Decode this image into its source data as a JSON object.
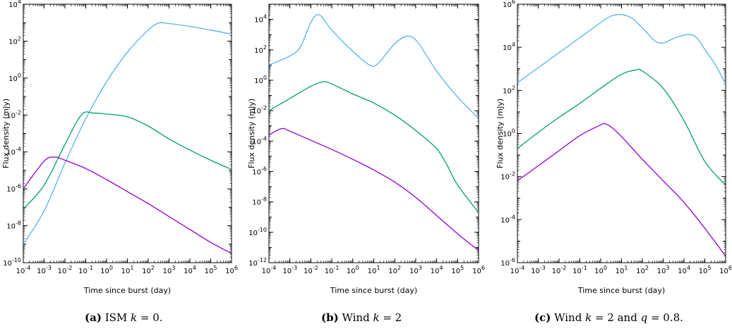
{
  "chart_data": [
    {
      "type": "line",
      "panel": "a",
      "caption_label": "(a)",
      "caption_text": "ISM",
      "caption_var": "k",
      "caption_rest": " = 0.",
      "xlabel": "Time since burst (day)",
      "ylabel": "Flux density (mJy)",
      "x_scale": "log",
      "y_scale": "log",
      "xlim_exp": [
        -4,
        6
      ],
      "ylim_exp": [
        -10,
        4
      ],
      "xticks_exp": [
        -4,
        -3,
        -2,
        -1,
        0,
        1,
        2,
        3,
        4,
        5,
        6
      ],
      "yticks_exp": [
        -10,
        -8,
        -6,
        -4,
        -2,
        0,
        2,
        4
      ],
      "series": [
        {
          "color": "#56b4e9",
          "log_points": [
            [
              -4,
              -9.0
            ],
            [
              -3,
              -7.2
            ],
            [
              -2,
              -4.6
            ],
            [
              -1,
              -2.2
            ],
            [
              0,
              -0.2
            ],
            [
              1,
              1.4
            ],
            [
              2,
              2.6
            ],
            [
              2.5,
              2.98
            ],
            [
              3,
              2.95
            ],
            [
              4,
              2.8
            ],
            [
              5,
              2.6
            ],
            [
              6,
              2.38
            ]
          ]
        },
        {
          "color": "#009e73",
          "log_points": [
            [
              -4,
              -7.1
            ],
            [
              -3,
              -5.8
            ],
            [
              -2,
              -3.6
            ],
            [
              -1.2,
              -1.98
            ],
            [
              -0.6,
              -1.9
            ],
            [
              0,
              -1.95
            ],
            [
              1,
              -2.1
            ],
            [
              2,
              -2.6
            ],
            [
              3,
              -3.3
            ],
            [
              4,
              -3.9
            ],
            [
              5,
              -4.45
            ],
            [
              6,
              -4.95
            ]
          ]
        },
        {
          "color": "#9400d3",
          "log_points": [
            [
              -4,
              -6.0
            ],
            [
              -3,
              -4.5
            ],
            [
              -2.5,
              -4.28
            ],
            [
              -2,
              -4.45
            ],
            [
              -1,
              -4.9
            ],
            [
              0,
              -5.5
            ],
            [
              1,
              -6.15
            ],
            [
              2,
              -6.8
            ],
            [
              3,
              -7.5
            ],
            [
              4,
              -8.2
            ],
            [
              5,
              -8.9
            ],
            [
              6,
              -9.5
            ]
          ]
        }
      ]
    },
    {
      "type": "line",
      "panel": "b",
      "caption_label": "(b)",
      "caption_text": "Wind",
      "caption_var": "k",
      "caption_rest": " = 2",
      "xlabel": "Time since burst (day)",
      "ylabel": "Flux density (mJy)",
      "x_scale": "log",
      "y_scale": "log",
      "xlim_exp": [
        -4,
        6
      ],
      "ylim_exp": [
        -12,
        5
      ],
      "xticks_exp": [
        -4,
        -3,
        -2,
        -1,
        0,
        1,
        2,
        3,
        4,
        5,
        6
      ],
      "yticks_exp": [
        -12,
        -10,
        -8,
        -6,
        -4,
        -2,
        0,
        2,
        4
      ],
      "series": [
        {
          "color": "#56b4e9",
          "log_points": [
            [
              -4,
              1.0
            ],
            [
              -3,
              1.6
            ],
            [
              -2.5,
              2.2
            ],
            [
              -2,
              3.8
            ],
            [
              -1.6,
              4.3
            ],
            [
              -1,
              3.3
            ],
            [
              0,
              1.9
            ],
            [
              0.8,
              1.0
            ],
            [
              1.2,
              1.1
            ],
            [
              2,
              2.4
            ],
            [
              2.6,
              2.9
            ],
            [
              3.1,
              2.5
            ],
            [
              4,
              0.6
            ],
            [
              5,
              -1.1
            ],
            [
              6,
              -2.5
            ]
          ]
        },
        {
          "color": "#009e73",
          "log_points": [
            [
              -4,
              -2.0
            ],
            [
              -3,
              -1.2
            ],
            [
              -2,
              -0.4
            ],
            [
              -1.4,
              -0.1
            ],
            [
              -1,
              -0.25
            ],
            [
              0,
              -0.9
            ],
            [
              1,
              -1.5
            ],
            [
              2,
              -2.3
            ],
            [
              3,
              -3.3
            ],
            [
              4,
              -4.5
            ],
            [
              4.5,
              -5.6
            ],
            [
              5,
              -6.9
            ],
            [
              6,
              -8.7
            ]
          ]
        },
        {
          "color": "#9400d3",
          "log_points": [
            [
              -4,
              -3.6
            ],
            [
              -3.4,
              -3.18
            ],
            [
              -3,
              -3.35
            ],
            [
              -2,
              -3.95
            ],
            [
              -1,
              -4.55
            ],
            [
              0,
              -5.2
            ],
            [
              1,
              -5.9
            ],
            [
              2,
              -6.7
            ],
            [
              3,
              -7.7
            ],
            [
              4,
              -8.9
            ],
            [
              5,
              -10.1
            ],
            [
              6,
              -11.2
            ]
          ]
        }
      ]
    },
    {
      "type": "line",
      "panel": "c",
      "caption_label": "(c)",
      "caption_text": "Wind",
      "caption_var": "k",
      "caption_rest": " = 2 and ",
      "caption_var2": "q",
      "caption_rest2": " = 0.8.",
      "xlabel": "Time since burst (day)",
      "ylabel": "Flux density (mJy)",
      "x_scale": "log",
      "y_scale": "log",
      "xlim_exp": [
        -4,
        6
      ],
      "ylim_exp": [
        -6,
        6
      ],
      "xticks_exp": [
        -4,
        -3,
        -2,
        -1,
        0,
        1,
        2,
        3,
        4,
        5,
        6
      ],
      "yticks_exp": [
        -6,
        -4,
        -2,
        0,
        2,
        4,
        6
      ],
      "series": [
        {
          "color": "#56b4e9",
          "log_points": [
            [
              -4,
              2.35
            ],
            [
              -3,
              3.05
            ],
            [
              -2,
              3.75
            ],
            [
              -1,
              4.45
            ],
            [
              0,
              5.15
            ],
            [
              0.5,
              5.45
            ],
            [
              1,
              5.52
            ],
            [
              1.5,
              5.35
            ],
            [
              2,
              4.9
            ],
            [
              2.6,
              4.3
            ],
            [
              3,
              4.2
            ],
            [
              3.6,
              4.45
            ],
            [
              4.2,
              4.6
            ],
            [
              4.6,
              4.45
            ],
            [
              5,
              3.9
            ],
            [
              5.5,
              3.2
            ],
            [
              6,
              2.3
            ]
          ]
        },
        {
          "color": "#009e73",
          "log_points": [
            [
              -4,
              -0.7
            ],
            [
              -3,
              0.05
            ],
            [
              -2,
              0.75
            ],
            [
              -1,
              1.4
            ],
            [
              0,
              2.1
            ],
            [
              1,
              2.75
            ],
            [
              1.7,
              2.95
            ],
            [
              2,
              2.9
            ],
            [
              3,
              2.1
            ],
            [
              4,
              0.6
            ],
            [
              5,
              -1.3
            ],
            [
              6,
              -2.4
            ]
          ]
        },
        {
          "color": "#9400d3",
          "log_points": [
            [
              -4,
              -2.2
            ],
            [
              -3,
              -1.5
            ],
            [
              -2,
              -0.8
            ],
            [
              -1,
              -0.1
            ],
            [
              0,
              0.4
            ],
            [
              0.2,
              0.45
            ],
            [
              0.5,
              0.3
            ],
            [
              1,
              -0.15
            ],
            [
              2,
              -1.2
            ],
            [
              3,
              -2.2
            ],
            [
              4,
              -3.2
            ],
            [
              5,
              -4.4
            ],
            [
              6,
              -5.7
            ]
          ]
        }
      ]
    }
  ]
}
